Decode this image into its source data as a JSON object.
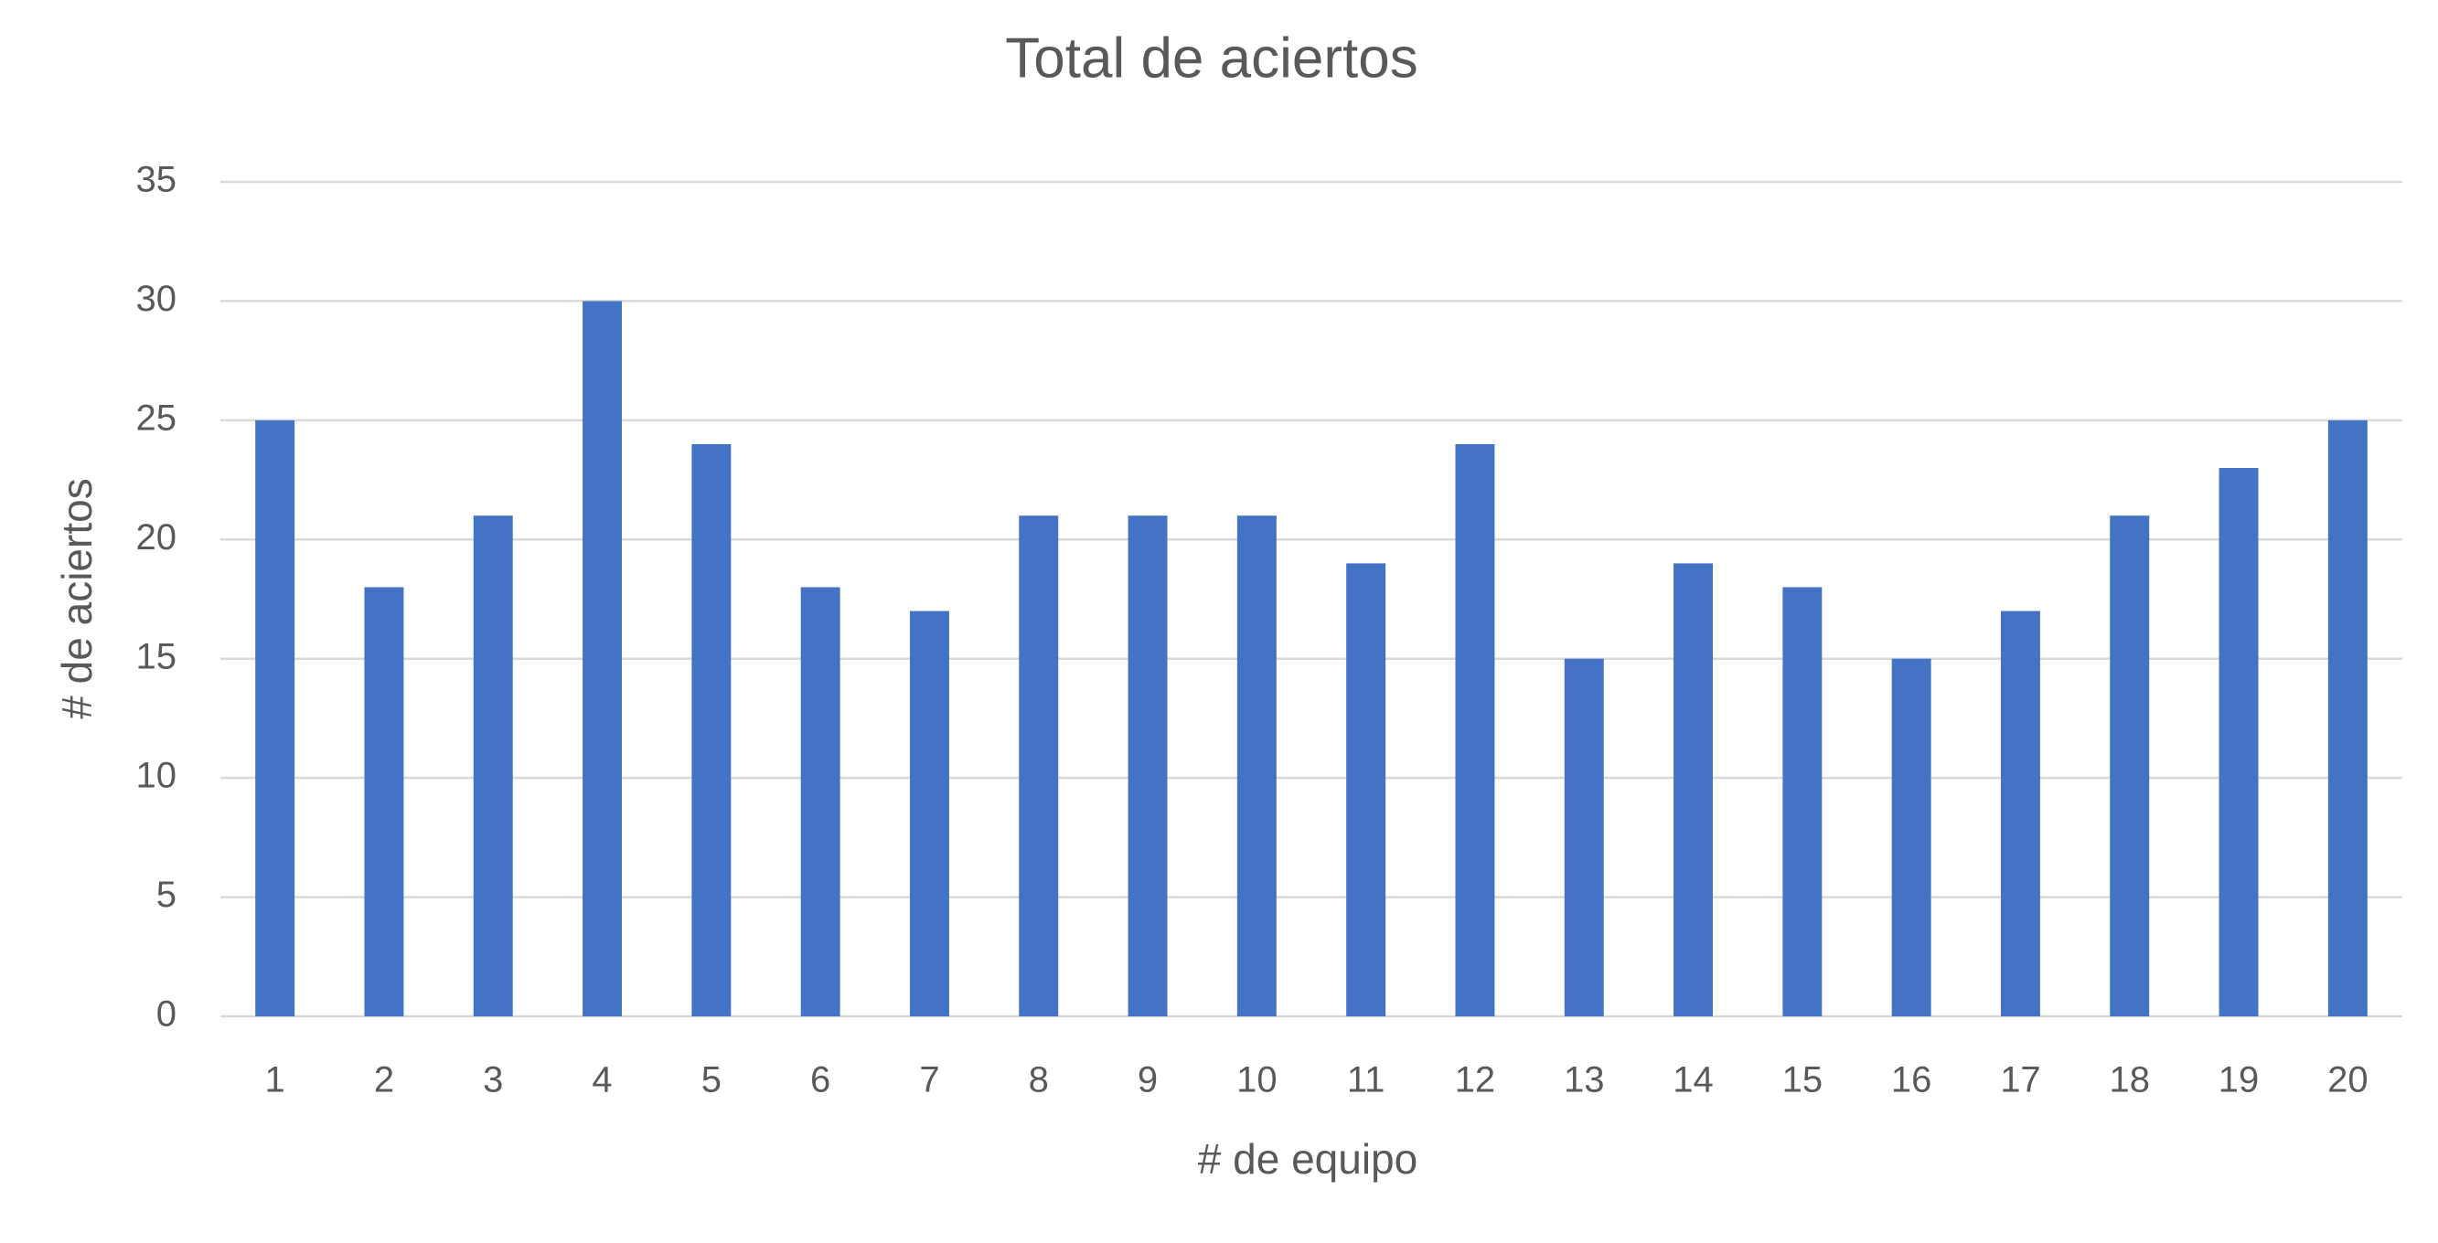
{
  "chart_data": {
    "type": "bar",
    "title": "Total de aciertos",
    "x_label": "# de equipo",
    "y_label": "# de aciertos",
    "categories": [
      "1",
      "2",
      "3",
      "4",
      "5",
      "6",
      "7",
      "8",
      "9",
      "10",
      "11",
      "12",
      "13",
      "14",
      "15",
      "16",
      "17",
      "18",
      "19",
      "20"
    ],
    "values": [
      25,
      18,
      21,
      30,
      24,
      18,
      17,
      21,
      21,
      21,
      19,
      24,
      15,
      19,
      18,
      15,
      17,
      21,
      23,
      25
    ],
    "color": "#4472c4",
    "ylim": [
      0,
      35
    ],
    "yticks": [
      0,
      5,
      10,
      15,
      20,
      25,
      30,
      35
    ],
    "grid": true
  }
}
